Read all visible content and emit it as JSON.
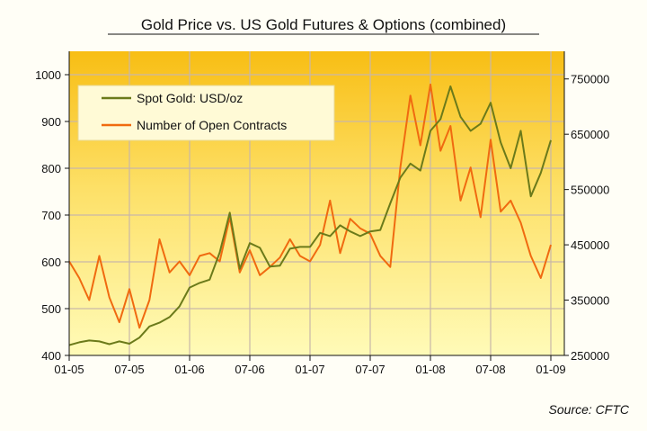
{
  "chart_data": {
    "type": "line",
    "title": "Gold Price vs. US Gold Futures & Options (combined)",
    "source": "Source:  CFTC",
    "x_tick_labels": [
      "01-05",
      "07-05",
      "01-06",
      "07-06",
      "01-07",
      "07-07",
      "01-08",
      "07-08",
      "01-09"
    ],
    "y_left": {
      "ylim": [
        400,
        1050
      ],
      "ticks": [
        400,
        500,
        600,
        700,
        800,
        900,
        1000
      ]
    },
    "y_right": {
      "ylim": [
        250000,
        800000
      ],
      "ticks": [
        250000,
        350000,
        450000,
        550000,
        650000,
        750000
      ]
    },
    "grid": true,
    "legend_placement": "top-left",
    "x": [
      "2005-01",
      "2005-02",
      "2005-03",
      "2005-04",
      "2005-05",
      "2005-06",
      "2005-07",
      "2005-08",
      "2005-09",
      "2005-10",
      "2005-11",
      "2005-12",
      "2006-01",
      "2006-02",
      "2006-03",
      "2006-04",
      "2006-05",
      "2006-06",
      "2006-07",
      "2006-08",
      "2006-09",
      "2006-10",
      "2006-11",
      "2006-12",
      "2007-01",
      "2007-02",
      "2007-03",
      "2007-04",
      "2007-05",
      "2007-06",
      "2007-07",
      "2007-08",
      "2007-09",
      "2007-10",
      "2007-11",
      "2007-12",
      "2008-01",
      "2008-02",
      "2008-03",
      "2008-04",
      "2008-05",
      "2008-06",
      "2008-07",
      "2008-08",
      "2008-09",
      "2008-10",
      "2008-11",
      "2008-12",
      "2009-01"
    ],
    "series": [
      {
        "name": "Spot Gold: USD/oz",
        "axis": "left",
        "color": "#6b7a1a",
        "values": [
          422,
          428,
          432,
          430,
          424,
          430,
          425,
          438,
          462,
          470,
          482,
          505,
          545,
          555,
          562,
          620,
          705,
          585,
          640,
          630,
          590,
          592,
          628,
          632,
          632,
          662,
          655,
          678,
          665,
          655,
          665,
          668,
          725,
          780,
          810,
          795,
          880,
          905,
          975,
          910,
          880,
          895,
          940,
          855,
          800,
          880,
          740,
          790,
          860
        ]
      },
      {
        "name": "Number of Open Contracts",
        "axis": "right",
        "color": "#f06a10",
        "values": [
          420000,
          390000,
          350000,
          430000,
          355000,
          310000,
          370000,
          300000,
          350000,
          460000,
          400000,
          420000,
          395000,
          430000,
          435000,
          420000,
          500000,
          400000,
          440000,
          395000,
          410000,
          427000,
          460000,
          430000,
          420000,
          450000,
          530000,
          435000,
          497000,
          480000,
          470000,
          430000,
          410000,
          590000,
          720000,
          630000,
          740000,
          620000,
          665000,
          530000,
          590000,
          500000,
          640000,
          510000,
          530000,
          490000,
          430000,
          390000,
          450000
        ]
      }
    ]
  },
  "colors": {
    "plot_top": "#f8be14",
    "plot_bottom": "#fffbb8",
    "legend_bg": "#fffad6"
  }
}
